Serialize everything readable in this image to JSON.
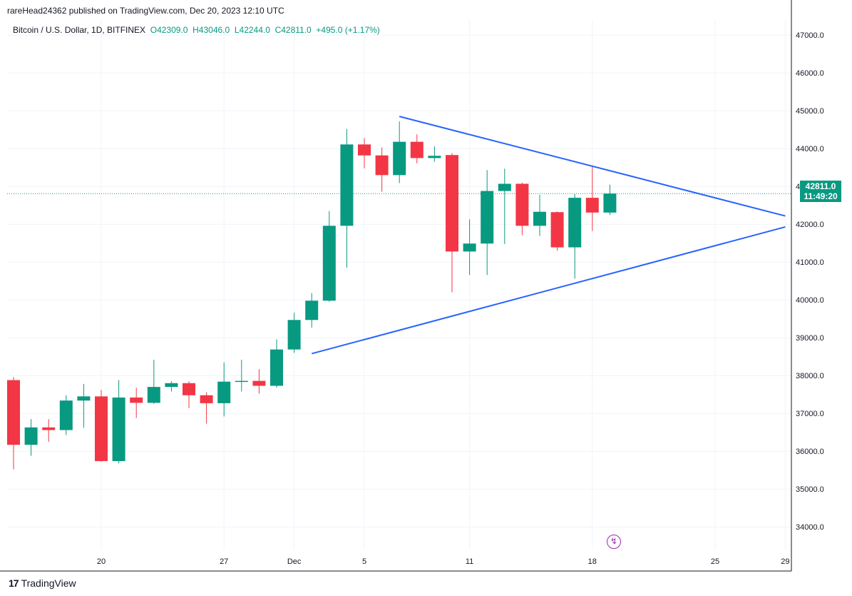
{
  "header": {
    "published": "rareHead24362 published on TradingView.com, Dec 20, 2023 12:10 UTC"
  },
  "legend": {
    "name": "Bitcoin / U.S. Dollar, 1D, BITFINEX",
    "open": "O42309.0",
    "high": "H43046.0",
    "low": "L42244.0",
    "close": "C42811.0",
    "change": "+495.0 (+1.17%)"
  },
  "price_tag": {
    "price": "42811.0",
    "countdown": "11:49:20"
  },
  "footer": {
    "brand": "TradingView",
    "logo_icon": "tradingview-logo-icon"
  },
  "colors": {
    "up": "#089981",
    "down": "#f23645",
    "trend": "#2962ff",
    "grid": "#f0f3fa",
    "axis_text": "#131722"
  },
  "chart_data": {
    "type": "candlestick",
    "ylim": [
      33400,
      47400
    ],
    "y_ticks": [
      34000,
      35000,
      36000,
      37000,
      38000,
      39000,
      40000,
      41000,
      42000,
      43000,
      44000,
      45000,
      46000,
      47000
    ],
    "y_tick_labels": [
      "34000.0",
      "35000.0",
      "36000.0",
      "37000.0",
      "38000.0",
      "39000.0",
      "40000.0",
      "41000.0",
      "42000.0",
      "43000.0",
      "44000.0",
      "45000.0",
      "46000.0",
      "47000.0"
    ],
    "x_range": [
      "2023-11-15",
      "2023-12-29"
    ],
    "x_ticks": [
      {
        "date": "2023-11-20",
        "label": "20"
      },
      {
        "date": "2023-11-27",
        "label": "27"
      },
      {
        "date": "2023-12-01",
        "label": "Dec"
      },
      {
        "date": "2023-12-05",
        "label": "5"
      },
      {
        "date": "2023-12-11",
        "label": "11"
      },
      {
        "date": "2023-12-18",
        "label": "18"
      },
      {
        "date": "2023-12-25",
        "label": "25"
      },
      {
        "date": "2023-12-29",
        "label": "29"
      }
    ],
    "candles": [
      {
        "date": "2023-11-15",
        "o": 37880,
        "h": 37960,
        "l": 35520,
        "c": 36170
      },
      {
        "date": "2023-11-16",
        "o": 36170,
        "h": 36850,
        "l": 35880,
        "c": 36630
      },
      {
        "date": "2023-11-17",
        "o": 36630,
        "h": 36850,
        "l": 36250,
        "c": 36560
      },
      {
        "date": "2023-11-18",
        "o": 36560,
        "h": 37480,
        "l": 36430,
        "c": 37340
      },
      {
        "date": "2023-11-19",
        "o": 37340,
        "h": 37780,
        "l": 36620,
        "c": 37450
      },
      {
        "date": "2023-11-20",
        "o": 37450,
        "h": 37620,
        "l": 35720,
        "c": 35740
      },
      {
        "date": "2023-11-21",
        "o": 35740,
        "h": 37880,
        "l": 35680,
        "c": 37420
      },
      {
        "date": "2023-11-22",
        "o": 37420,
        "h": 37680,
        "l": 36880,
        "c": 37280
      },
      {
        "date": "2023-11-23",
        "o": 37280,
        "h": 38420,
        "l": 37250,
        "c": 37700
      },
      {
        "date": "2023-11-24",
        "o": 37700,
        "h": 37850,
        "l": 37580,
        "c": 37800
      },
      {
        "date": "2023-11-25",
        "o": 37800,
        "h": 37850,
        "l": 37140,
        "c": 37480
      },
      {
        "date": "2023-11-26",
        "o": 37480,
        "h": 37560,
        "l": 36730,
        "c": 37270
      },
      {
        "date": "2023-11-27",
        "o": 37270,
        "h": 38350,
        "l": 36920,
        "c": 37840
      },
      {
        "date": "2023-11-28",
        "o": 37840,
        "h": 38420,
        "l": 37580,
        "c": 37860
      },
      {
        "date": "2023-11-29",
        "o": 37860,
        "h": 38170,
        "l": 37520,
        "c": 37730
      },
      {
        "date": "2023-11-30",
        "o": 37730,
        "h": 38960,
        "l": 37680,
        "c": 38690
      },
      {
        "date": "2023-12-01",
        "o": 38690,
        "h": 39660,
        "l": 38600,
        "c": 39470
      },
      {
        "date": "2023-12-02",
        "o": 39470,
        "h": 40180,
        "l": 39270,
        "c": 39980
      },
      {
        "date": "2023-12-03",
        "o": 39980,
        "h": 42350,
        "l": 39950,
        "c": 41960
      },
      {
        "date": "2023-12-04",
        "o": 41960,
        "h": 44520,
        "l": 40850,
        "c": 44110
      },
      {
        "date": "2023-12-05",
        "o": 44110,
        "h": 44280,
        "l": 43480,
        "c": 43820
      },
      {
        "date": "2023-12-06",
        "o": 43820,
        "h": 44030,
        "l": 42860,
        "c": 43300
      },
      {
        "date": "2023-12-07",
        "o": 43300,
        "h": 44720,
        "l": 43090,
        "c": 44180
      },
      {
        "date": "2023-12-08",
        "o": 44180,
        "h": 44380,
        "l": 43610,
        "c": 43750
      },
      {
        "date": "2023-12-09",
        "o": 43750,
        "h": 44060,
        "l": 43650,
        "c": 43810
      },
      {
        "date": "2023-12-10",
        "o": 43830,
        "h": 43880,
        "l": 40200,
        "c": 41280
      },
      {
        "date": "2023-12-11",
        "o": 41280,
        "h": 42130,
        "l": 40660,
        "c": 41490
      },
      {
        "date": "2023-12-12",
        "o": 41490,
        "h": 43430,
        "l": 40660,
        "c": 42880
      },
      {
        "date": "2023-12-13",
        "o": 42880,
        "h": 43470,
        "l": 41480,
        "c": 43070
      },
      {
        "date": "2023-12-14",
        "o": 43070,
        "h": 43100,
        "l": 41710,
        "c": 41960
      },
      {
        "date": "2023-12-15",
        "o": 41960,
        "h": 42780,
        "l": 41690,
        "c": 42330
      },
      {
        "date": "2023-12-16",
        "o": 42320,
        "h": 42340,
        "l": 41300,
        "c": 41390
      },
      {
        "date": "2023-12-17",
        "o": 41390,
        "h": 42800,
        "l": 40560,
        "c": 42700
      },
      {
        "date": "2023-12-18",
        "o": 42700,
        "h": 43540,
        "l": 41820,
        "c": 42310
      },
      {
        "date": "2023-12-19",
        "o": 42309,
        "h": 43046,
        "l": 42244,
        "c": 42811
      }
    ],
    "last_price": 42811,
    "trendlines": [
      {
        "from": {
          "date": "2023-12-07",
          "price": 44850
        },
        "to": {
          "date": "2023-12-29",
          "price": 42220
        }
      },
      {
        "from": {
          "date": "2023-12-02",
          "price": 38580
        },
        "to": {
          "date": "2023-12-29",
          "price": 41930
        }
      }
    ]
  }
}
